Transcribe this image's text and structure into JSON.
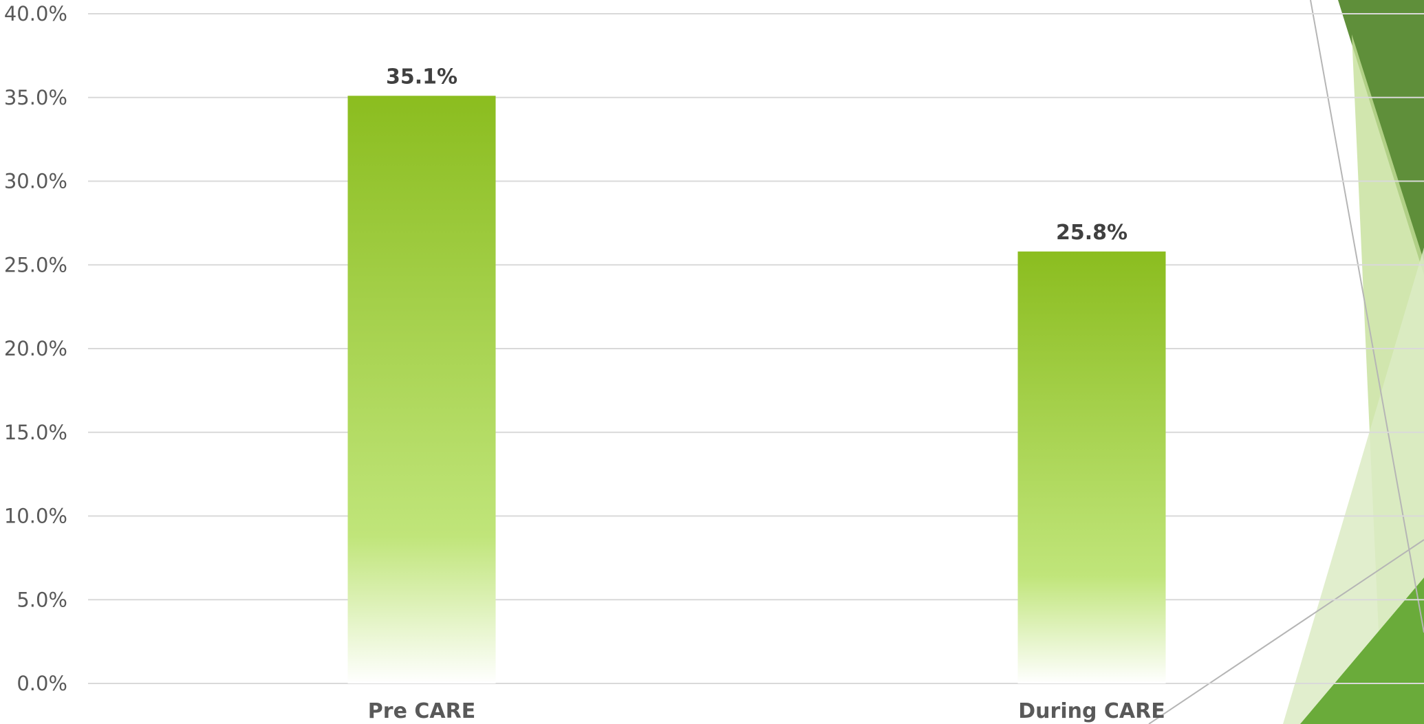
{
  "chart_data": {
    "type": "bar",
    "categories": [
      "Pre CARE",
      "During CARE"
    ],
    "values": [
      35.1,
      25.8
    ],
    "data_labels": [
      "35.1%",
      "25.8%"
    ],
    "title": "",
    "xlabel": "",
    "ylabel": "",
    "ylim": [
      0,
      40
    ],
    "yticks": [
      "0.0%",
      "5.0%",
      "10.0%",
      "15.0%",
      "20.0%",
      "25.0%",
      "30.0%",
      "35.0%",
      "40.0%"
    ],
    "grid": true,
    "legend": "none"
  },
  "colors": {
    "bar_top": "#8bbd1f",
    "bar_bottom": "#ffffff",
    "bar_light": "#c0e57a",
    "gridline": "#d9d9d9",
    "text": "#595959",
    "label_text": "#404040",
    "deco_dark_green": "#5f8f3a",
    "deco_mid_green": "#6aab3a",
    "deco_light_green": "#c5e09a",
    "deco_pale_green": "#dcebc4",
    "deco_line": "#b5b5b5"
  }
}
